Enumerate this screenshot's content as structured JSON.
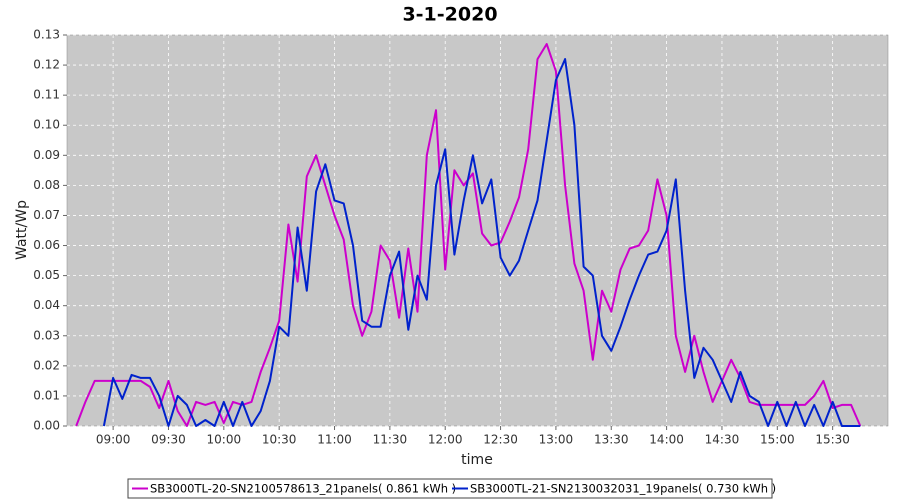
{
  "chart_data": {
    "type": "line",
    "title": "3-1-2020",
    "x_label": "time",
    "y_label": "Watt/Wp",
    "xlim": [
      "08:35",
      "16:00"
    ],
    "xticks": [
      "09:00",
      "09:30",
      "10:00",
      "10:30",
      "11:00",
      "11:30",
      "12:00",
      "12:30",
      "13:00",
      "13:30",
      "14:00",
      "14:30",
      "15:00",
      "15:30"
    ],
    "ylim": [
      0,
      0.13
    ],
    "yticks": [
      {
        "value": 0,
        "label": "0.00"
      },
      {
        "value": 0.01,
        "label": "0.01"
      },
      {
        "value": 0.02,
        "label": "0.02"
      },
      {
        "value": 0.03,
        "label": "0.03"
      },
      {
        "value": 0.04,
        "label": "0.04"
      },
      {
        "value": 0.05,
        "label": "0.05"
      },
      {
        "value": 0.06,
        "label": "0.06"
      },
      {
        "value": 0.07,
        "label": "0.07"
      },
      {
        "value": 0.08,
        "label": "0.08"
      },
      {
        "value": 0.09,
        "label": "0.09"
      },
      {
        "value": 0.1,
        "label": "0.10"
      },
      {
        "value": 0.11,
        "label": "0.11"
      },
      {
        "value": 0.12,
        "label": "0.12"
      },
      {
        "value": 0.13,
        "label": "0.13"
      }
    ],
    "grid": true,
    "x": [
      "08:40",
      "08:45",
      "08:50",
      "08:55",
      "09:00",
      "09:05",
      "09:10",
      "09:15",
      "09:20",
      "09:25",
      "09:30",
      "09:35",
      "09:40",
      "09:45",
      "09:50",
      "09:55",
      "10:00",
      "10:05",
      "10:10",
      "10:15",
      "10:20",
      "10:25",
      "10:30",
      "10:35",
      "10:40",
      "10:45",
      "10:50",
      "10:55",
      "11:00",
      "11:05",
      "11:10",
      "11:15",
      "11:20",
      "11:25",
      "11:30",
      "11:35",
      "11:40",
      "11:45",
      "11:50",
      "11:55",
      "12:00",
      "12:05",
      "12:10",
      "12:15",
      "12:20",
      "12:25",
      "12:30",
      "12:35",
      "12:40",
      "12:45",
      "12:50",
      "12:55",
      "13:00",
      "13:05",
      "13:10",
      "13:15",
      "13:20",
      "13:25",
      "13:30",
      "13:35",
      "13:40",
      "13:45",
      "13:50",
      "13:55",
      "14:00",
      "14:05",
      "14:10",
      "14:15",
      "14:20",
      "14:25",
      "14:30",
      "14:35",
      "14:40",
      "14:45",
      "14:50",
      "14:55",
      "15:00",
      "15:05",
      "15:10",
      "15:15",
      "15:20",
      "15:25",
      "15:30",
      "15:35",
      "15:40",
      "15:45"
    ],
    "series": [
      {
        "name": "SB3000TL-20-SN2100578613_21panels( 0.861 kWh )",
        "color": "#cc00cc",
        "values": [
          0,
          0.008,
          0.015,
          0.015,
          0.015,
          0.015,
          0.015,
          0.015,
          0.013,
          0.006,
          0.015,
          0.005,
          0,
          0.008,
          0.007,
          0.008,
          0.001,
          0.008,
          0.007,
          0.008,
          0.018,
          0.026,
          0.035,
          0.067,
          0.048,
          0.083,
          0.09,
          0.08,
          0.07,
          0.062,
          0.04,
          0.03,
          0.038,
          0.06,
          0.055,
          0.036,
          0.059,
          0.038,
          0.09,
          0.105,
          0.052,
          0.085,
          0.08,
          0.084,
          0.064,
          0.06,
          0.061,
          0.068,
          0.076,
          0.092,
          0.122,
          0.127,
          0.118,
          0.08,
          0.054,
          0.045,
          0.022,
          0.045,
          0.038,
          0.052,
          0.059,
          0.06,
          0.065,
          0.082,
          0.07,
          0.03,
          0.018,
          0.03,
          0.018,
          0.008,
          0.015,
          0.022,
          0.016,
          0.008,
          0.007,
          0.007,
          0.007,
          0.007,
          0.007,
          0.007,
          0.01,
          0.015,
          0.006,
          0.007,
          0.007,
          0
        ]
      },
      {
        "name": "SB3000TL-21-SN2130032031_19panels( 0.730 kWh )",
        "color": "#0022cc",
        "values": [
          null,
          null,
          null,
          0,
          0.016,
          0.009,
          0.017,
          0.016,
          0.016,
          0.01,
          0,
          0.01,
          0.007,
          0,
          0.002,
          0,
          0.008,
          0,
          0.008,
          0,
          0.005,
          0.015,
          0.033,
          0.03,
          0.066,
          0.045,
          0.078,
          0.087,
          0.075,
          0.074,
          0.06,
          0.035,
          0.033,
          0.033,
          0.05,
          0.058,
          0.032,
          0.05,
          0.042,
          0.08,
          0.092,
          0.057,
          0.075,
          0.09,
          0.074,
          0.082,
          0.056,
          0.05,
          0.055,
          0.065,
          0.075,
          0.095,
          0.115,
          0.122,
          0.1,
          0.053,
          0.05,
          0.03,
          0.025,
          0.033,
          0.042,
          0.05,
          0.057,
          0.058,
          0.065,
          0.082,
          0.045,
          0.016,
          0.026,
          0.022,
          0.015,
          0.008,
          0.018,
          0.01,
          0.008,
          0,
          0.008,
          0,
          0.008,
          0,
          0.007,
          0,
          0.008,
          0,
          0,
          0
        ]
      }
    ]
  }
}
